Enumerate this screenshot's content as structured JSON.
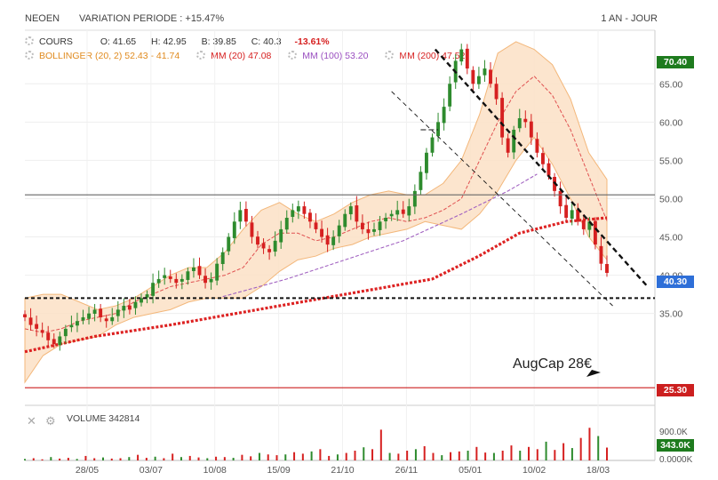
{
  "header": {
    "ticker": "NEOEN",
    "variation": "VARIATION PERIODE : +15.47%",
    "period": "1 AN - JOUR"
  },
  "legend": {
    "cours_label": "COURS",
    "open": "O: 41.65",
    "high": "H: 42.95",
    "low": "B: 39.85",
    "close": "C: 40.3",
    "change": "-13.61%",
    "bollinger": "BOLLINGER (20, 2)  52.43 - 41.74",
    "mm20": "MM (20)  47.08",
    "mm100": "MM (100)  53.20",
    "mm200": "MM (200)  47.52"
  },
  "volume_panel": {
    "label": "VOLUME  342814",
    "y_ticks": [
      "900.0K",
      "0.0000K"
    ],
    "last_tag": "343.0K"
  },
  "price_tags": {
    "high_tag": "70.40",
    "last_tag": "40.30",
    "low_tag": "25.30"
  },
  "annotation": "AugCap 28€",
  "colors": {
    "bull": "#2e8b2e",
    "bear": "#d62020",
    "bollinger_fill": "#fbe1c6",
    "bollinger_line": "#f3b77a",
    "mm20": "#e05050",
    "mm100": "#a060c0",
    "mm200": "#dd2222",
    "tag_green": "#1e7b1e",
    "tag_blue": "#2e6fd8",
    "tag_red": "#cc1f1f"
  },
  "chart_data": {
    "type": "candlestick",
    "x_tick_labels": [
      "28/05",
      "03/07",
      "10/08",
      "15/09",
      "21/10",
      "26/11",
      "05/01",
      "10/02",
      "18/03"
    ],
    "y_ticks": [
      35,
      40,
      45,
      50,
      55,
      60,
      65
    ],
    "y_tick_labels": [
      "35.00",
      "40.00",
      "45.00",
      "50.00",
      "55.00",
      "60.00",
      "65.00"
    ],
    "ylim": [
      23,
      72
    ],
    "close_series_approx": [
      34.5,
      33.5,
      33.0,
      32.5,
      31.5,
      31.0,
      32.0,
      33.0,
      33.5,
      34.0,
      34.5,
      35.0,
      35.5,
      34.5,
      34.0,
      34.5,
      35.5,
      36.0,
      35.5,
      36.5,
      37.0,
      37.5,
      39.0,
      39.5,
      40.0,
      39.5,
      39.0,
      39.5,
      40.5,
      41.0,
      40.0,
      39.0,
      39.5,
      41.5,
      43.0,
      45.0,
      47.0,
      48.5,
      47.0,
      45.0,
      44.0,
      43.5,
      43.0,
      44.5,
      46.0,
      47.5,
      48.5,
      49.0,
      48.0,
      47.0,
      46.0,
      45.0,
      44.0,
      45.0,
      46.5,
      48.0,
      49.0,
      47.0,
      46.0,
      45.5,
      46.0,
      47.0,
      47.5,
      48.0,
      48.5,
      48.0,
      49.0,
      51.0,
      53.5,
      56.0,
      58.0,
      60.0,
      62.0,
      65.0,
      68.0,
      69.5,
      67.0,
      65.0,
      66.0,
      67.0,
      65.0,
      63.0,
      58.0,
      56.0,
      59.0,
      60.5,
      60.0,
      58.0,
      56.0,
      54.5,
      53.0,
      51.0,
      49.0,
      47.5,
      48.5,
      47.0,
      46.0,
      47.0,
      44.0,
      41.5,
      40.3
    ],
    "bollinger_upper_approx": [
      37.0,
      37.5,
      37.5,
      36.5,
      35.5,
      36.0,
      37.0,
      38.5,
      40.0,
      41.0,
      41.0,
      43.0,
      46.0,
      48.5,
      49.5,
      48.0,
      47.0,
      48.0,
      49.5,
      50.5,
      51.0,
      50.5,
      50.5,
      52.0,
      55.0,
      61.0,
      69.0,
      70.5,
      69.5,
      67.5,
      63.0,
      56.0,
      52.5
    ],
    "bollinger_lower_approx": [
      26.0,
      29.5,
      31.0,
      31.5,
      32.0,
      33.5,
      34.5,
      35.0,
      35.5,
      36.5,
      37.0,
      37.0,
      37.0,
      38.5,
      40.5,
      42.0,
      42.5,
      43.5,
      44.0,
      45.0,
      45.5,
      46.0,
      47.0,
      46.5,
      46.0,
      48.0,
      51.0,
      55.0,
      58.0,
      54.5,
      50.0,
      45.0,
      42.0
    ],
    "mm20_approx": [
      33.0,
      32.5,
      33.0,
      34.0,
      34.5,
      35.0,
      36.5,
      37.5,
      38.5,
      39.0,
      39.5,
      40.0,
      41.0,
      44.0,
      45.5,
      45.5,
      44.5,
      45.0,
      46.0,
      47.0,
      47.5,
      47.0,
      47.5,
      48.5,
      50.0,
      55.0,
      60.0,
      64.0,
      66.0,
      63.5,
      59.0,
      53.0,
      47.1
    ],
    "mm100_approx": [
      {
        "x": 0.34,
        "y": 37.2
      },
      {
        "x": 0.45,
        "y": 39.5
      },
      {
        "x": 0.55,
        "y": 42.0
      },
      {
        "x": 0.65,
        "y": 44.5
      },
      {
        "x": 0.75,
        "y": 48.0
      },
      {
        "x": 0.83,
        "y": 51.0
      },
      {
        "x": 0.88,
        "y": 53.2
      }
    ],
    "mm200_approx": [
      {
        "x": 0.0,
        "y": 30.0
      },
      {
        "x": 0.12,
        "y": 32.0
      },
      {
        "x": 0.25,
        "y": 33.5
      },
      {
        "x": 0.4,
        "y": 35.5
      },
      {
        "x": 0.55,
        "y": 37.5
      },
      {
        "x": 0.7,
        "y": 39.5
      },
      {
        "x": 0.78,
        "y": 42.5
      },
      {
        "x": 0.85,
        "y": 45.5
      },
      {
        "x": 0.93,
        "y": 47.0
      },
      {
        "x": 1.0,
        "y": 47.5
      }
    ],
    "horizontal_levels": [
      {
        "y": 50.5,
        "style": "solid-gray"
      },
      {
        "y": 37.0,
        "style": "dashed-black"
      },
      {
        "y": 25.3,
        "style": "solid-red"
      }
    ],
    "trendlines": [
      {
        "from": {
          "x": 0.705,
          "y": 69.5
        },
        "to": {
          "x": 1.07,
          "y": 38.5
        },
        "style": "dashed-black-thick"
      },
      {
        "from": {
          "x": 0.68,
          "y": 59.0
        },
        "to": {
          "x": 0.71,
          "y": 59.0
        },
        "style": "dashed-black"
      },
      {
        "from": {
          "x": 0.63,
          "y": 64.0
        },
        "to": {
          "x": 1.01,
          "y": 36.0
        },
        "style": "dashed-black-thin"
      }
    ],
    "volume_approx": [
      40,
      60,
      30,
      90,
      50,
      70,
      40,
      120,
      60,
      80,
      50,
      60,
      90,
      150,
      70,
      100,
      60,
      180,
      90,
      120,
      80,
      60,
      100,
      90,
      70,
      150,
      110,
      200,
      160,
      140,
      160,
      220,
      180,
      240,
      300,
      120,
      160,
      200,
      260,
      350,
      300,
      820,
      200,
      180,
      260,
      300,
      380,
      200,
      140,
      220,
      240,
      260,
      360,
      210,
      200,
      260,
      400,
      260,
      360,
      300,
      500,
      280,
      460,
      330,
      600,
      870,
      650,
      343
    ]
  }
}
